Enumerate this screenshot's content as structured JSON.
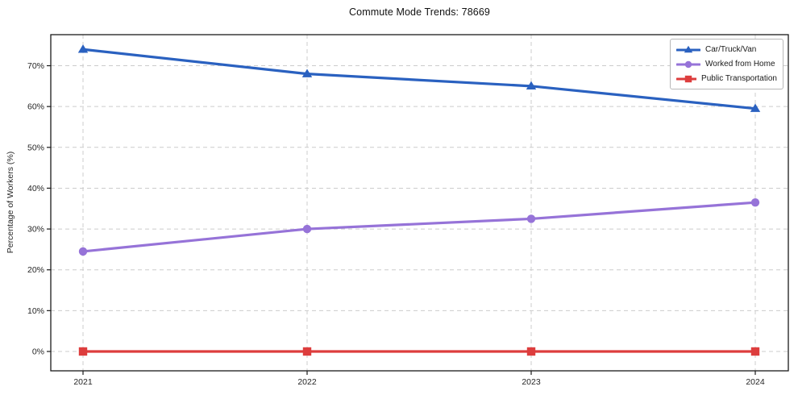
{
  "chart_data": {
    "type": "line",
    "title": "Commute Mode Trends: 78669",
    "xlabel": "",
    "ylabel": "Percentage of Workers (%)",
    "categories": [
      "2021",
      "2022",
      "2023",
      "2024"
    ],
    "series": [
      {
        "name": "Car/Truck/Van",
        "marker": "triangle",
        "color": "#2a61c0",
        "values": [
          74,
          68,
          65,
          59.5
        ]
      },
      {
        "name": "Worked from Home",
        "marker": "circle",
        "color": "#9673d8",
        "values": [
          24.5,
          30,
          32.5,
          36.5
        ]
      },
      {
        "name": "Public Transportation",
        "marker": "square",
        "color": "#dd3d3d",
        "values": [
          0,
          0,
          0,
          0
        ]
      }
    ],
    "ytick_labels": [
      "0%",
      "10%",
      "20%",
      "30%",
      "40%",
      "50%",
      "60%",
      "70%"
    ],
    "ytick_values": [
      0,
      10,
      20,
      30,
      40,
      50,
      60,
      70
    ],
    "ylim": [
      -4.7,
      77.6
    ],
    "grid": true,
    "grid_style": "dashed",
    "legend_position": "upper right",
    "colors": {
      "grid": "#cccccc",
      "spine": "#1a1a1a",
      "text": "#262626",
      "background": "#ffffff"
    }
  }
}
